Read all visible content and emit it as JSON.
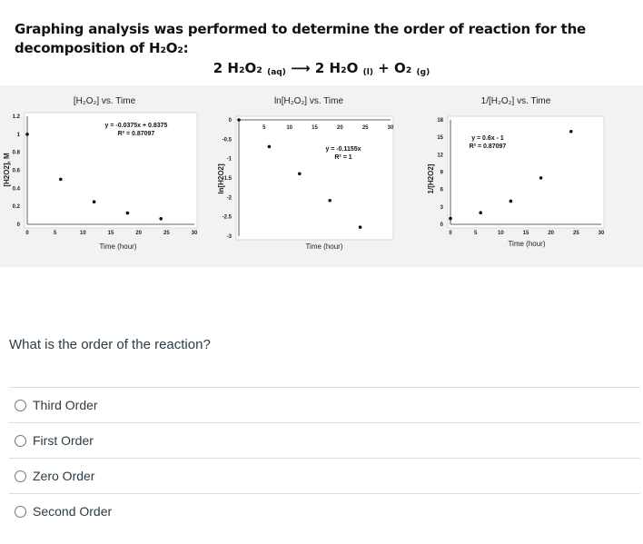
{
  "question": {
    "text": "Graphing analysis was performed to determine the order of reaction for the decomposition of H₂O₂:",
    "equation": {
      "reactant": "2 H₂O₂",
      "reactant_state": "(aq)",
      "arrow": "⟶",
      "product1": "2 H₂O",
      "product1_state": "(l)",
      "plus": "+",
      "product2": "O₂",
      "product2_state": "(g)"
    },
    "prompt": "What is the order of the reaction?"
  },
  "answers": [
    {
      "label": "Third Order"
    },
    {
      "label": "First Order"
    },
    {
      "label": "Zero Order"
    },
    {
      "label": "Second Order"
    }
  ],
  "colors": {
    "text": "#2d3b45",
    "divider": "#d8dde0",
    "graph_bg": "#f2f2f2"
  },
  "chart_data": [
    {
      "type": "scatter",
      "title": "[H₂O₂] vs. Time",
      "xlabel": "Time (hour)",
      "ylabel": "[H2O2], M",
      "xlim": [
        0,
        30
      ],
      "ylim": [
        0,
        1.2
      ],
      "xticks": [
        "0",
        "5",
        "10",
        "15",
        "20",
        "25",
        "30"
      ],
      "yticks": [
        "0",
        "0.2",
        "0.4",
        "0.6",
        "0.8",
        "1",
        "1.2"
      ],
      "equation": "y = -0.0375x + 0.8375",
      "r2": "R² = 0.87097",
      "x": [
        0,
        6,
        12,
        18,
        24
      ],
      "y": [
        1.0,
        0.5,
        0.25,
        0.125,
        0.0625
      ]
    },
    {
      "type": "scatter",
      "title": "ln[H₂O₂] vs. Time",
      "xlabel": "Time (hour)",
      "ylabel": "ln[H2O2]",
      "xlim": [
        0,
        30
      ],
      "ylim": [
        -3,
        0
      ],
      "xticks": [
        "5",
        "10",
        "15",
        "20",
        "25",
        "30"
      ],
      "yticks": [
        "0",
        "-0.5",
        "-1",
        "-1.5",
        "-2",
        "-2.5",
        "-3"
      ],
      "equation": "y = -0.1155x",
      "r2": "R² = 1",
      "x": [
        0,
        6,
        12,
        18,
        24
      ],
      "y": [
        0,
        -0.69,
        -1.39,
        -2.08,
        -2.77
      ]
    },
    {
      "type": "scatter",
      "title": "1/[H₂O₂] vs. Time",
      "xlabel": "Time (hour)",
      "ylabel": "1/[H2O2]",
      "xlim": [
        0,
        30
      ],
      "ylim": [
        0,
        18
      ],
      "xticks": [
        "0",
        "5",
        "10",
        "15",
        "20",
        "25",
        "30"
      ],
      "yticks": [
        "0",
        "3",
        "6",
        "9",
        "12",
        "15",
        "18"
      ],
      "equation": "y = 0.6x - 1",
      "r2": "R² = 0.87097",
      "x": [
        0,
        6,
        12,
        18,
        24
      ],
      "y": [
        1,
        2,
        4,
        8,
        16
      ]
    }
  ]
}
